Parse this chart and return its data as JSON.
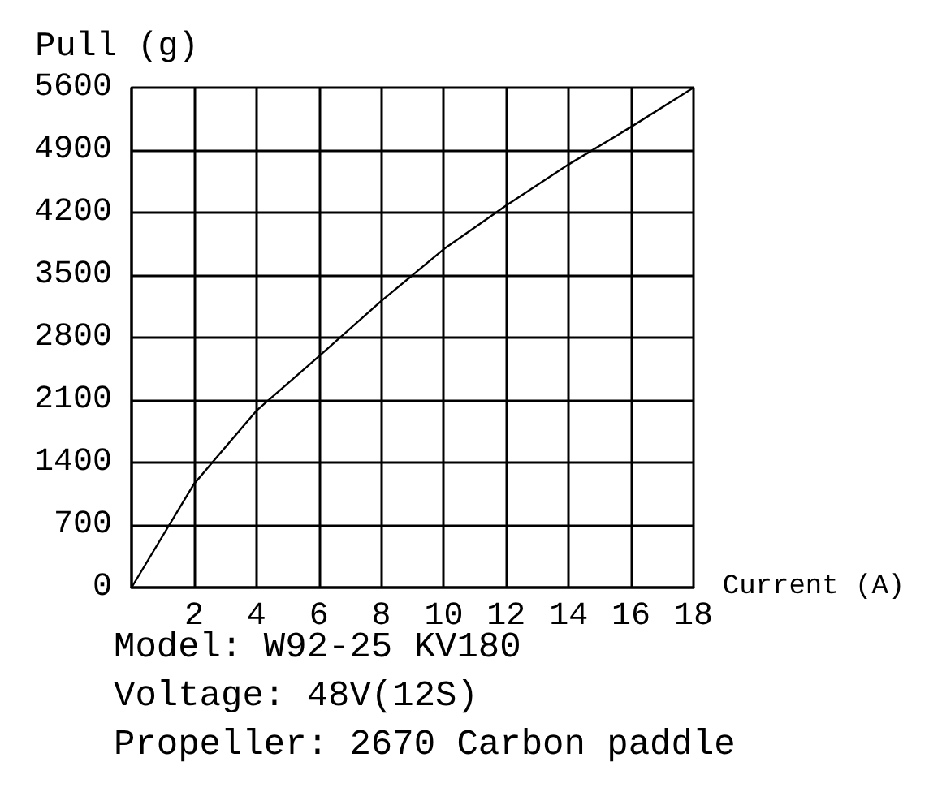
{
  "chart_data": {
    "type": "line",
    "xlabel": "Current (A)",
    "ylabel": "Pull (g)",
    "x": [
      0,
      2,
      4,
      6,
      8,
      10,
      12,
      14,
      16,
      18
    ],
    "values": [
      0,
      1160,
      1980,
      2590,
      3210,
      3790,
      4280,
      4740,
      5160,
      5600
    ],
    "color": "#000000",
    "marker": "none",
    "xlim": [
      0,
      18
    ],
    "xticks": [
      {
        "value": 0,
        "label": null
      },
      2,
      4,
      6,
      8,
      10,
      12,
      14,
      16,
      18
    ],
    "ylim": [
      0,
      5600
    ],
    "yticks": [
      0,
      700,
      1400,
      2100,
      2800,
      3500,
      4200,
      4900,
      5600
    ],
    "grid": true,
    "annotations": [
      "Model: W92-25 KV180",
      "Voltage: 48V(12S)",
      "Propeller: 2670 Carbon paddle"
    ]
  }
}
